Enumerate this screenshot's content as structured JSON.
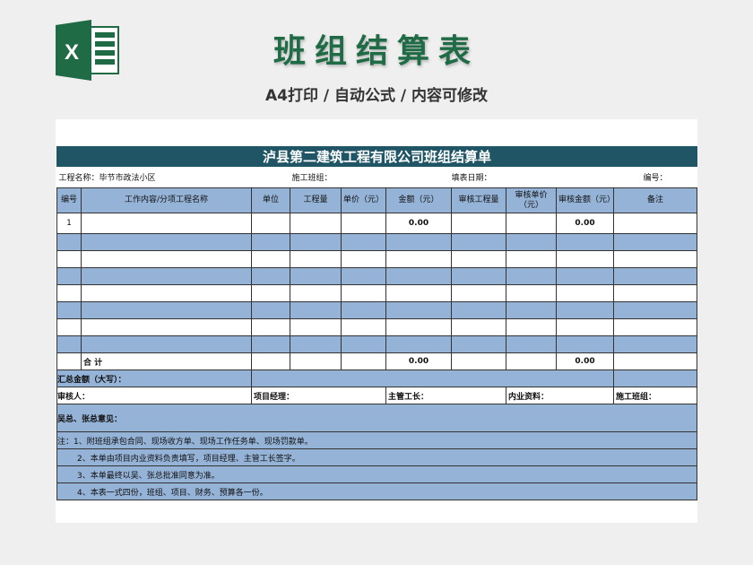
{
  "banner": {
    "title": "班组结算表",
    "subtitle": "A4打印 / 自动公式 / 内容可修改",
    "logo_letter": "X",
    "accent": "#1e6b45"
  },
  "sheet": {
    "title": "泸县第二建筑工程有限公司班组结算单",
    "info": {
      "project": "工程名称：毕节市政法小区",
      "team": "施工班组：",
      "date": "填表日期：",
      "number": "编号："
    },
    "headers": [
      "编号",
      "工作内容/分项工程名称",
      "单位",
      "工程量",
      "单价（元）",
      "金额（元）",
      "审核工程量",
      "审核单价（元）",
      "审核金额（元）",
      "备注"
    ],
    "rows": [
      [
        "1",
        "",
        "",
        "",
        "",
        "0.00",
        "",
        "",
        "0.00",
        ""
      ],
      [
        "",
        "",
        "",
        "",
        "",
        "",
        "",
        "",
        "",
        ""
      ],
      [
        "",
        "",
        "",
        "",
        "",
        "",
        "",
        "",
        "",
        ""
      ],
      [
        "",
        "",
        "",
        "",
        "",
        "",
        "",
        "",
        "",
        ""
      ],
      [
        "",
        "",
        "",
        "",
        "",
        "",
        "",
        "",
        "",
        ""
      ],
      [
        "",
        "",
        "",
        "",
        "",
        "",
        "",
        "",
        "",
        ""
      ],
      [
        "",
        "",
        "",
        "",
        "",
        "",
        "",
        "",
        "",
        ""
      ],
      [
        "",
        "",
        "",
        "",
        "",
        "",
        "",
        "",
        "",
        ""
      ]
    ],
    "total": {
      "label": "合 计",
      "amount": "0.00",
      "audit_amount": "0.00"
    },
    "summary_label": "汇总金额（大写）：",
    "signatures": [
      "审核人：",
      "项目经理：",
      "主管工长：",
      "内业资料：",
      "施工班组："
    ],
    "opinion": "吴总、张总意见：",
    "notes": [
      "注：1、附班组承包合同、现场收方单、现场工作任务单、现场罚款单。",
      "2、本单由项目内业资料负责填写，项目经理、主管工长签字。",
      "3、本单最终以吴、张总批准同意为准。",
      "4、本表一式四份，班组、项目、财务、预算各一份。"
    ],
    "colors": {
      "header_bg": "#1f5564",
      "band": "#95b3d7"
    }
  }
}
